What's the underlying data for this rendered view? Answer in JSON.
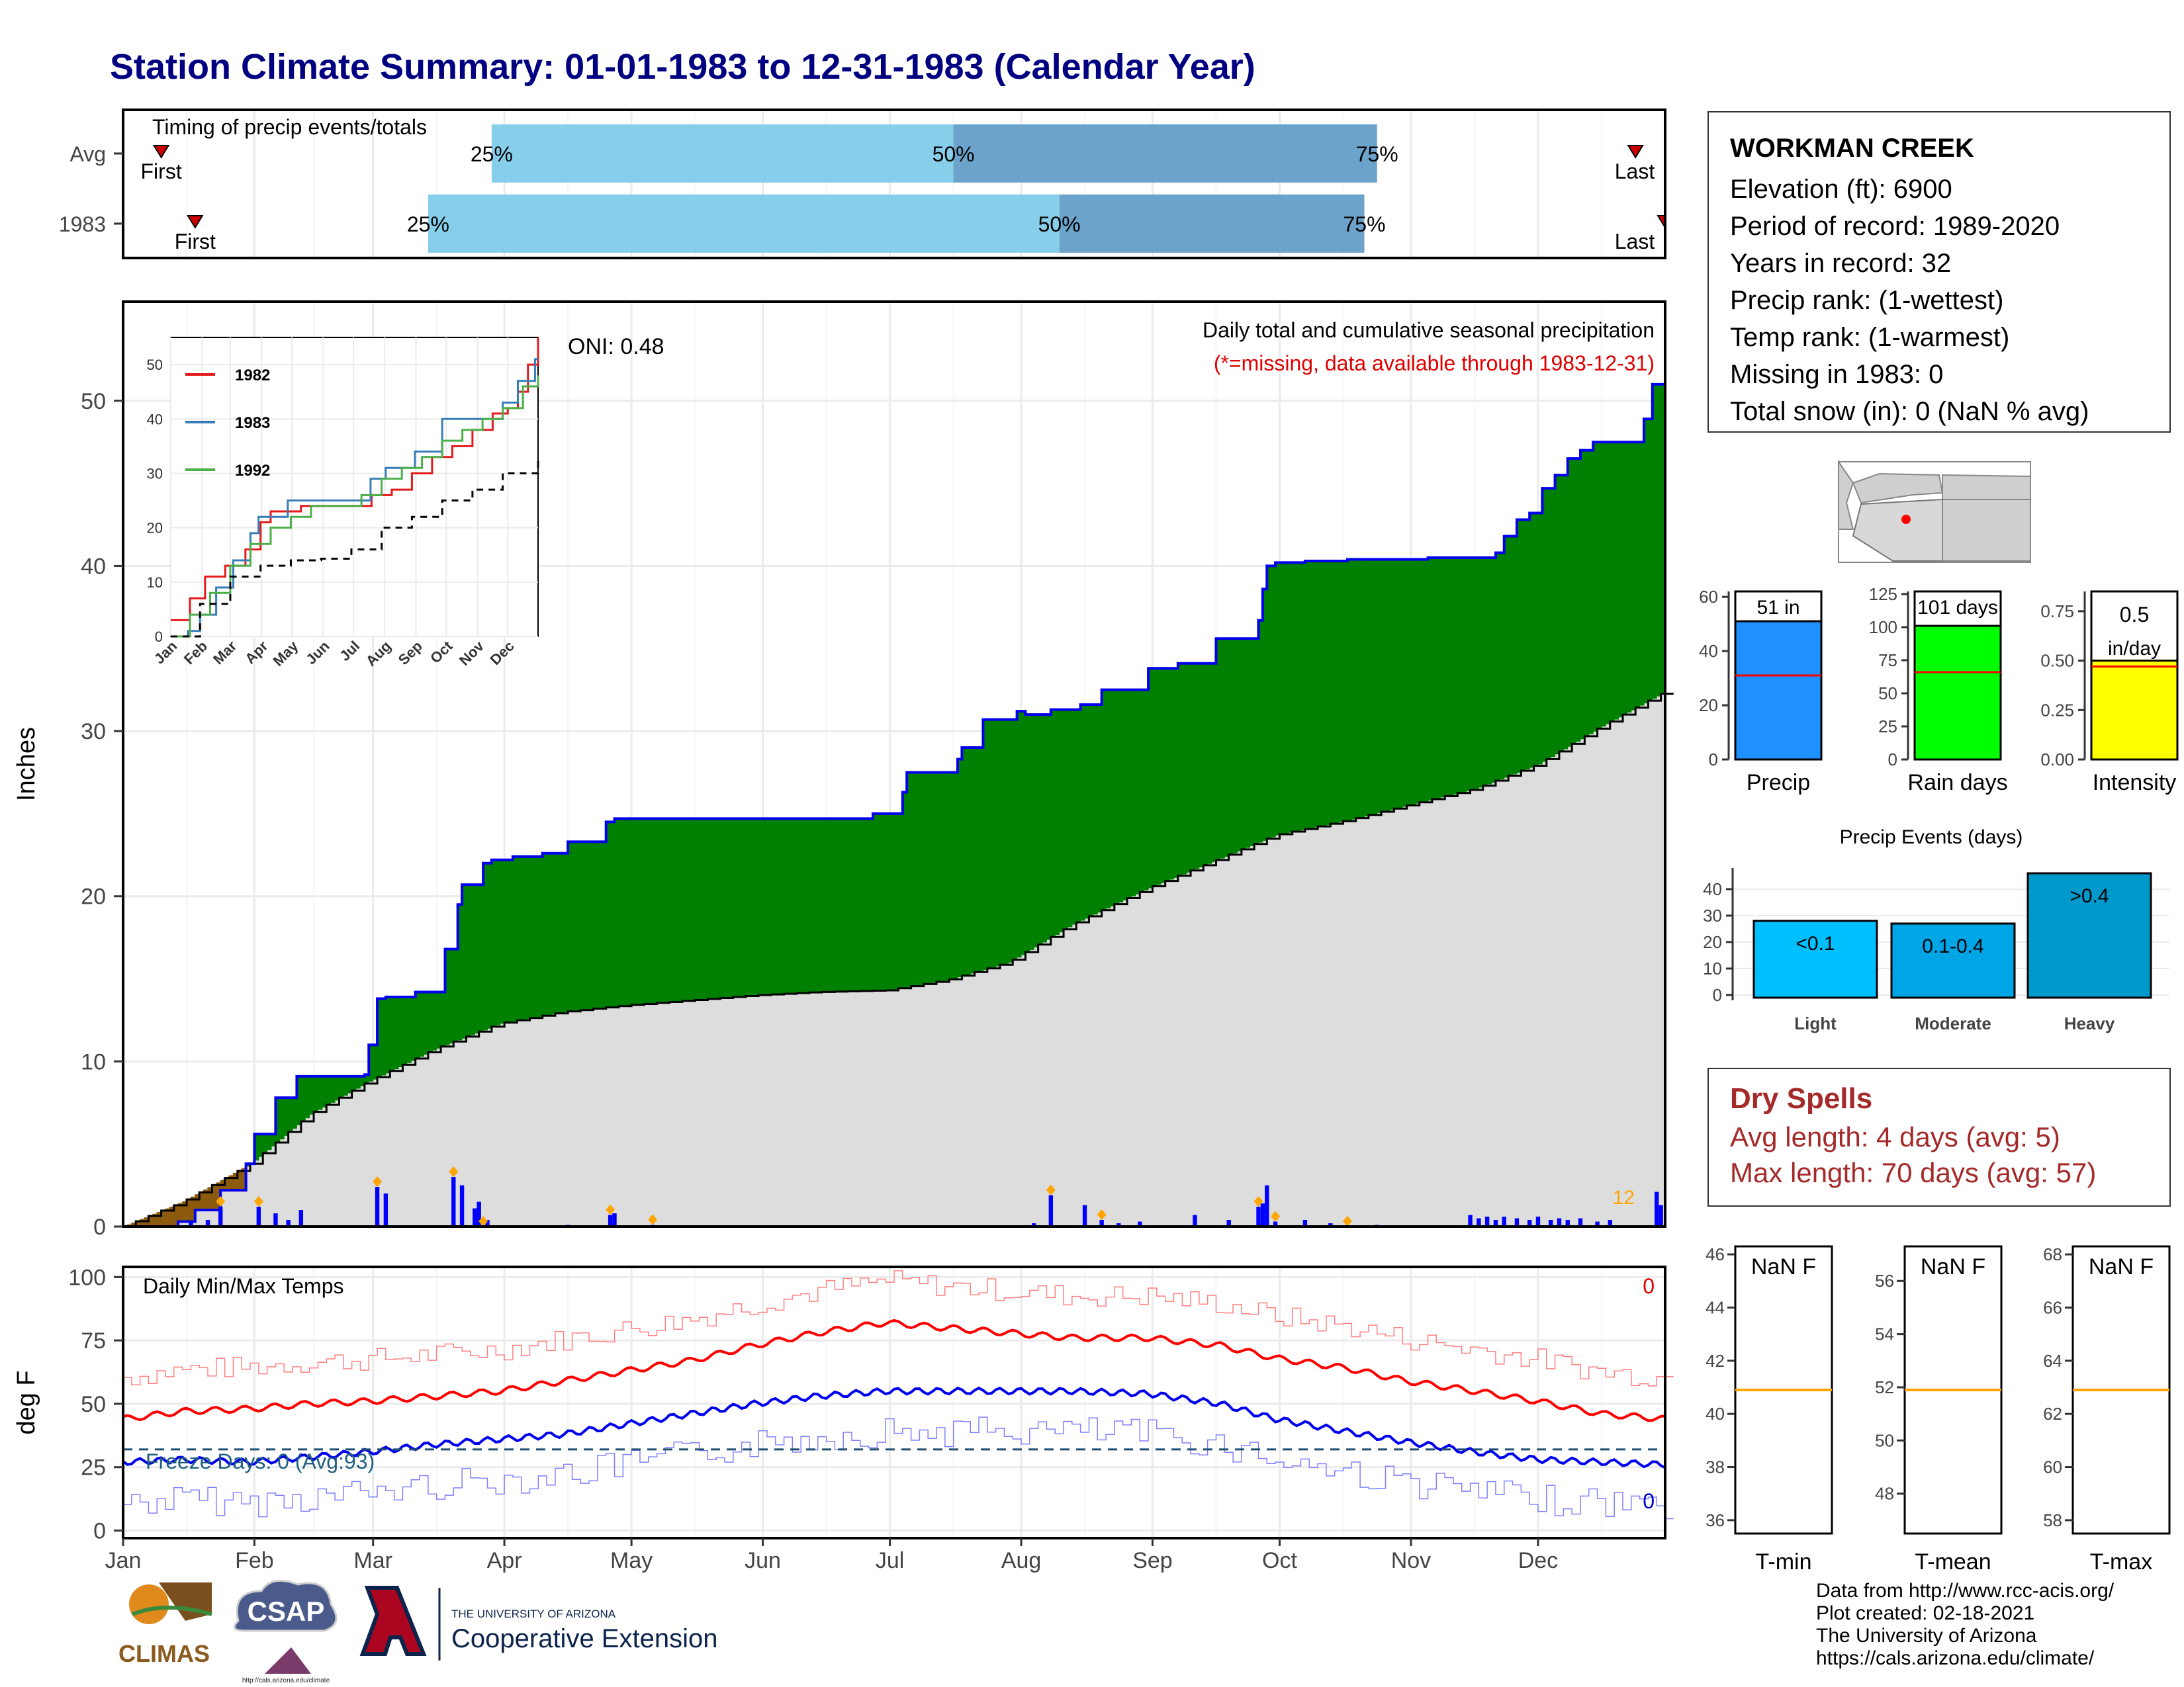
{
  "title": "Station Climate Summary: 01-01-1983 to 12-31-1983 (Calendar Year)",
  "months": [
    "Jan",
    "Feb",
    "Mar",
    "Apr",
    "May",
    "Jun",
    "Jul",
    "Aug",
    "Sep",
    "Oct",
    "Nov",
    "Dec"
  ],
  "timing": {
    "title": "Timing of precip events/totals",
    "rows": [
      {
        "label": "Avg",
        "first_doy": 10,
        "q25_doy": 88,
        "q50_doy": 197,
        "q75_doy": 297,
        "last_doy": 358,
        "first": "First",
        "last": "Last",
        "p25": "25%",
        "p50": "50%",
        "p75": "75%"
      },
      {
        "label": "1983",
        "first_doy": 18,
        "q25_doy": 73,
        "q50_doy": 222,
        "q75_doy": 294,
        "last_doy": 365,
        "first": "First",
        "last": "Last",
        "p25": "25%",
        "p50": "50%",
        "p75": "75%"
      }
    ]
  },
  "precip_panel": {
    "ylabel": "Inches",
    "yticks": [
      0,
      10,
      20,
      30,
      40,
      50
    ],
    "ylim": [
      0,
      56
    ],
    "caption": "Daily total and cumulative seasonal precipitation",
    "missing_note": "(*=missing, data available through 1983-12-31)",
    "oni": "ONI: 0.48",
    "corner_count": "12"
  },
  "inset": {
    "yticks": [
      0,
      10,
      20,
      30,
      40,
      50
    ],
    "legend": [
      {
        "name": "1982",
        "color": "#e41a1c"
      },
      {
        "name": "1983",
        "color": "#377eb8"
      },
      {
        "name": "1992",
        "color": "#4daf4a"
      }
    ]
  },
  "temp_panel": {
    "ylabel": "deg F",
    "title": "Daily Min/Max Temps",
    "yticks": [
      0,
      25,
      50,
      75,
      100
    ],
    "freeze": "Freeze Days: 0 (Avg:93)",
    "hot_count": "0",
    "cold_count": "0",
    "freeze_line": 32
  },
  "station": {
    "name": "WORKMAN CREEK",
    "lines": [
      "Elevation (ft): 6900",
      "Period of record: 1989-2020",
      "Years in record: 32",
      "Precip rank:  (1-wettest)",
      "Temp rank:  (1-warmest)",
      "Missing in 1983: 0",
      "Total snow (in): 0 (NaN % avg)"
    ]
  },
  "bar_panels": [
    {
      "label": "Precip",
      "value": 51,
      "avg": 31,
      "text": "51 in",
      "ticks": [
        0,
        20,
        40,
        60
      ],
      "ymax": 62,
      "color": "#1e90ff"
    },
    {
      "label": "Rain days",
      "value": 101,
      "avg": 66,
      "text": "101 days",
      "ticks": [
        0,
        25,
        50,
        75,
        100,
        125
      ],
      "ymax": 127,
      "color": "#00ff00"
    },
    {
      "label": "Intensity",
      "value": 0.5,
      "avg": 0.47,
      "text": "0.5",
      "text2": "in/day",
      "ticks": [
        "0.00",
        "0.25",
        "0.50",
        "0.75"
      ],
      "tickvals": [
        0,
        0.25,
        0.5,
        0.75
      ],
      "ymax": 0.85,
      "color": "#ffff00"
    }
  ],
  "precip_events": {
    "title": "Precip Events (days)",
    "ticks": [
      0,
      10,
      20,
      30,
      40
    ],
    "categories": [
      "Light",
      "Moderate",
      "Heavy"
    ],
    "labels": [
      "<0.1",
      "0.1-0.4",
      ">0.4"
    ],
    "values": [
      28,
      27,
      46
    ],
    "colors": [
      "#00bfff",
      "#00a5e5",
      "#0099cc"
    ]
  },
  "dry_spells": {
    "title": "Dry Spells",
    "avg": "Avg length: 4 days (avg: 5)",
    "max": "Max length: 70 days (avg: 57)"
  },
  "temp_boxes": [
    {
      "label": "T-min",
      "value": "NaN F",
      "ticks": [
        36,
        38,
        40,
        42,
        44,
        46
      ],
      "avg": 40.9,
      "ymin": 35.5,
      "ymax": 46.3
    },
    {
      "label": "T-mean",
      "value": "NaN F",
      "ticks": [
        48,
        50,
        52,
        54,
        56
      ],
      "avg": 51.9,
      "ymin": 46.5,
      "ymax": 57.3
    },
    {
      "label": "T-max",
      "value": "NaN F",
      "ticks": [
        58,
        60,
        62,
        64,
        66,
        68
      ],
      "avg": 62.9,
      "ymin": 57.5,
      "ymax": 68.3
    }
  ],
  "credits": [
    "Data from http://www.rcc-acis.org/",
    "Plot created: 02-18-2021",
    "The University of Arizona",
    "https://cals.arizona.edu/climate/"
  ],
  "logos": {
    "climas": "CLIMAS",
    "csap": "CSAP",
    "csap_url": "http://cals.arizona.edu/climate",
    "ua_line1": "THE UNIVERSITY OF ARIZONA",
    "ua_line2": "Cooperative Extension"
  },
  "chart_data": [
    {
      "type": "area",
      "title": "Daily total and cumulative seasonal precipitation",
      "ylabel": "Inches",
      "ylim": [
        0,
        56
      ],
      "x_unit": "day of year 1983",
      "cumulative_1983": {
        "x": [
          1,
          14,
          18,
          24,
          30,
          32,
          37,
          42,
          46,
          58,
          59,
          61,
          63,
          70,
          77,
          80,
          81,
          86,
          88,
          93,
          100,
          106,
          115,
          117,
          120,
          178,
          185,
          186,
          198,
          199,
          204,
          212,
          214,
          220,
          227,
          232,
          243,
          250,
          259,
          269,
          270,
          271,
          273,
          280,
          290,
          309,
          325,
          327,
          330,
          333,
          336,
          339,
          342,
          345,
          348,
          352,
          356,
          360,
          362,
          365
        ],
        "y": [
          0.0,
          0.3,
          1.0,
          2.2,
          3.8,
          5.6,
          7.8,
          9.1,
          9.1,
          9.2,
          11.0,
          13.8,
          13.9,
          14.2,
          16.8,
          19.5,
          20.7,
          22.0,
          22.2,
          22.4,
          22.6,
          23.3,
          24.5,
          24.7,
          24.7,
          25.0,
          26.3,
          27.5,
          28.3,
          29.0,
          30.7,
          31.2,
          31.0,
          31.3,
          31.6,
          32.5,
          33.8,
          34.1,
          35.6,
          36.7,
          38.6,
          40.0,
          40.2,
          40.3,
          40.4,
          40.5,
          40.8,
          41.8,
          42.8,
          43.2,
          44.7,
          45.5,
          46.5,
          47.0,
          47.5,
          47.5,
          47.5,
          48.9,
          51.0,
          51.0
        ]
      },
      "average_cumulative": {
        "x": [
          1,
          15,
          31,
          45,
          59,
          75,
          90,
          105,
          120,
          135,
          150,
          165,
          181,
          195,
          210,
          225,
          243,
          260,
          273,
          290,
          304,
          320,
          335,
          350,
          365
        ],
        "y": [
          0.0,
          1.5,
          3.8,
          6.8,
          8.8,
          10.8,
          12.3,
          13.0,
          13.4,
          13.7,
          14.0,
          14.2,
          14.3,
          14.9,
          16.0,
          18.3,
          20.5,
          22.3,
          23.7,
          24.6,
          25.5,
          26.5,
          28.0,
          30.3,
          32.4
        ]
      },
      "daily_precip": {
        "x": [
          17,
          21,
          24,
          33,
          37,
          40,
          43,
          61,
          63,
          79,
          81,
          84,
          85,
          87,
          106,
          116,
          117,
          126,
          216,
          220,
          228,
          232,
          236,
          241,
          254,
          262,
          269,
          270,
          271,
          273,
          280,
          286,
          297,
          319,
          321,
          323,
          325,
          327,
          330,
          333,
          335,
          338,
          340,
          342,
          345,
          349,
          352,
          363,
          364
        ],
        "y": [
          0.3,
          0.4,
          1.2,
          1.2,
          0.8,
          0.4,
          1.0,
          2.4,
          2.0,
          3.0,
          2.5,
          1.1,
          1.5,
          0.4,
          0.1,
          0.7,
          0.8,
          0.1,
          0.2,
          1.9,
          1.3,
          0.4,
          0.2,
          0.3,
          0.7,
          0.4,
          1.2,
          1.4,
          2.5,
          0.3,
          0.4,
          0.2,
          0.1,
          0.7,
          0.5,
          0.6,
          0.4,
          0.6,
          0.5,
          0.4,
          0.6,
          0.4,
          0.5,
          0.4,
          0.5,
          0.3,
          0.4,
          2.1,
          1.3
        ]
      },
      "record_points_x": [
        24,
        33,
        61,
        79,
        86,
        116,
        126,
        220,
        232,
        269,
        273,
        290
      ]
    },
    {
      "type": "line",
      "title": "Daily Min/Max Temps",
      "ylabel": "deg F",
      "ylim": [
        -3,
        104
      ],
      "avg_max": {
        "x": [
          1,
          15,
          31,
          45,
          59,
          75,
          90,
          105,
          120,
          135,
          150,
          165,
          181,
          195,
          210,
          225,
          243,
          260,
          273,
          290,
          304,
          320,
          335,
          350,
          365
        ],
        "y": [
          44,
          47,
          48,
          50,
          51,
          53,
          55,
          59,
          63,
          67,
          73,
          78,
          82,
          80,
          78,
          76,
          76,
          73,
          68,
          64,
          59,
          55,
          51,
          46,
          44
        ]
      },
      "avg_min": {
        "x": [
          1,
          15,
          31,
          45,
          59,
          75,
          90,
          105,
          120,
          135,
          150,
          165,
          181,
          195,
          210,
          225,
          243,
          260,
          273,
          290,
          304,
          320,
          335,
          350,
          365
        ],
        "y": [
          27,
          28,
          27,
          29,
          31,
          34,
          36,
          38,
          42,
          46,
          50,
          53,
          55,
          55,
          55,
          55,
          54,
          50,
          44,
          39,
          35,
          31,
          28,
          27,
          26
        ]
      },
      "freeze_line": 32
    },
    {
      "type": "line",
      "title": "",
      "ylim": [
        0,
        55
      ],
      "x_categories": [
        "Jan",
        "Feb",
        "Mar",
        "Apr",
        "May",
        "Jun",
        "Jul",
        "Aug",
        "Sep",
        "Oct",
        "Nov",
        "Dec"
      ],
      "series": [
        {
          "name": "1982",
          "x": [
            1,
            20,
            35,
            55,
            75,
            90,
            100,
            130,
            160,
            185,
            200,
            220,
            240,
            260,
            280,
            300,
            320,
            335,
            345,
            355,
            365
          ],
          "y": [
            3,
            7,
            11,
            13,
            16,
            21,
            23,
            24,
            24,
            24,
            26,
            27,
            30,
            33,
            35,
            38,
            41,
            42,
            45,
            50,
            55
          ]
        },
        {
          "name": "1983",
          "x": [
            1,
            18,
            30,
            46,
            58,
            63,
            80,
            88,
            117,
            178,
            199,
            214,
            243,
            270,
            290,
            330,
            345,
            362,
            365
          ],
          "y": [
            0,
            1,
            4,
            9,
            9,
            14,
            19,
            22,
            25,
            25,
            29,
            31,
            34,
            40,
            40,
            43,
            47,
            51,
            51
          ]
        },
        {
          "name": "1992",
          "x": [
            1,
            20,
            40,
            60,
            80,
            100,
            120,
            140,
            170,
            190,
            210,
            230,
            250,
            270,
            290,
            310,
            330,
            350,
            365
          ],
          "y": [
            0,
            4,
            8,
            13,
            17,
            20,
            22,
            24,
            24,
            26,
            29,
            31,
            33,
            36,
            38,
            40,
            42,
            46,
            48
          ]
        },
        {
          "name": "",
          "x": [
            1,
            30,
            60,
            90,
            120,
            150,
            180,
            210,
            240,
            270,
            300,
            330,
            365
          ],
          "y": [
            0,
            6,
            11,
            13,
            14,
            14.3,
            16,
            20,
            22,
            25,
            27,
            30,
            33
          ]
        }
      ]
    }
  ]
}
